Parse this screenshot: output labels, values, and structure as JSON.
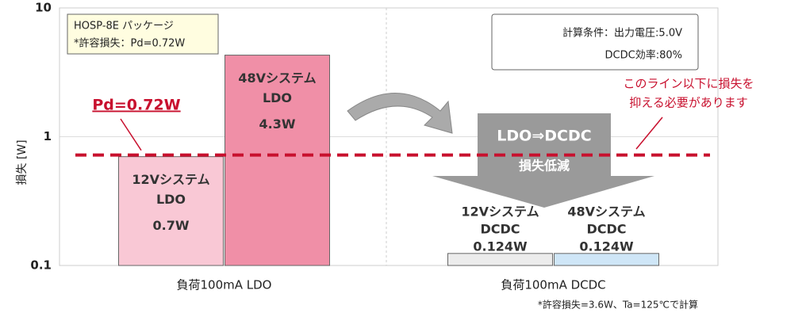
{
  "chart_data": {
    "type": "bar",
    "ylabel": "損失 [W]",
    "log_scale": true,
    "ylim": [
      0.1,
      10
    ],
    "yticks": [
      0.1,
      1,
      10
    ],
    "grid": true,
    "groups": [
      {
        "category": "負荷100mA LDO",
        "bars": [
          {
            "label": [
              "12Vシステム",
              "LDO"
            ],
            "value": 0.7,
            "value_label": "0.7W",
            "color": "#f9c8d5"
          },
          {
            "label": [
              "48Vシステム",
              "LDO"
            ],
            "value": 4.3,
            "value_label": "4.3W",
            "color": "#f08fa7"
          }
        ]
      },
      {
        "category": "負荷100mA DCDC",
        "bars": [
          {
            "label": [
              "12Vシステム",
              "DCDC"
            ],
            "value": 0.124,
            "value_label": "0.124W",
            "color": "#ececec"
          },
          {
            "label": [
              "48Vシステム",
              "DCDC"
            ],
            "value": 0.124,
            "value_label": "0.124W",
            "color": "#cfe6f7"
          }
        ]
      }
    ],
    "reference_line": {
      "value": 0.72,
      "label": "Pd=0.72W",
      "color": "#c8102e"
    },
    "package_box": [
      "HOSP-8E パッケージ",
      "*許容損失：Pd=0.72W"
    ],
    "condition_box": [
      "計算条件：出力電圧:5.0V",
      "DCDC効率:80%"
    ],
    "line_note": [
      "このライン以下に損失を",
      "抑える必要があります"
    ],
    "arrow_text": [
      "LDO⇒DCDC",
      "損失低減"
    ],
    "footnote": "*許容損失=3.6W、Ta=125℃で計算"
  }
}
